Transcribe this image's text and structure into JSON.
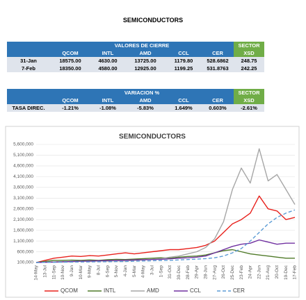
{
  "title": "SEMICONDUCTORS",
  "closing_table": {
    "group_header": "VALORES DE CIERRE",
    "sector_header": "SECTOR",
    "columns": [
      "QCOM",
      "INTL",
      "AMD",
      "CCL",
      "CER",
      "XSD"
    ],
    "rows": [
      {
        "label": "31-Jan",
        "values": [
          "18575.00",
          "4630.00",
          "13725.00",
          "1179.80",
          "528.6862",
          "248.75"
        ]
      },
      {
        "label": "7-Feb",
        "values": [
          "18350.00",
          "4580.00",
          "12925.00",
          "1199.25",
          "531.8763",
          "242.25"
        ]
      }
    ]
  },
  "variation_table": {
    "group_header": "VARIACION %",
    "sector_header": "SECTOR",
    "columns": [
      "QCOM",
      "INTL",
      "AMD",
      "CCL",
      "CER",
      "XSD"
    ],
    "rows": [
      {
        "label": "TASA DIREC.",
        "values": [
          "-1.21%",
          "-1.08%",
          "-5.83%",
          "1.649%",
          "0.603%",
          "-2.61%"
        ]
      }
    ]
  },
  "chart_data": {
    "type": "line",
    "title": "SEMICONDUCTORS",
    "categories": [
      "14-May",
      "13-Jul",
      "11-Sep",
      "10-Nov",
      "9-Jan",
      "10-Mar",
      "9-May",
      "8-Jul",
      "6-Sep",
      "5-Nov",
      "4-Jan",
      "5-Mar",
      "4-May",
      "3-Jul",
      "1-Sep",
      "31-Oct",
      "30-Dec",
      "28-Feb",
      "29-Apr",
      "28-Jun",
      "27-Aug",
      "26-Oct",
      "25-Dec",
      "23-Feb",
      "24-Apr",
      "22-Jun",
      "21-Aug",
      "20-Oct",
      "19-Dec",
      "17-Feb"
    ],
    "series": [
      {
        "name": "QCOM",
        "color": "#e8201b",
        "values": [
          100000,
          200000,
          300000,
          350000,
          400000,
          380000,
          420000,
          400000,
          450000,
          500000,
          550000,
          500000,
          550000,
          600000,
          650000,
          700000,
          700000,
          750000,
          800000,
          900000,
          1100000,
          1500000,
          1900000,
          2100000,
          2400000,
          3200000,
          2600000,
          2500000,
          2100000,
          2200000
        ]
      },
      {
        "name": "INTL",
        "color": "#4f7a28",
        "values": [
          100000,
          150000,
          200000,
          200000,
          210000,
          200000,
          220000,
          200000,
          230000,
          250000,
          240000,
          260000,
          280000,
          300000,
          320000,
          300000,
          350000,
          380000,
          400000,
          450000,
          550000,
          650000,
          700000,
          600000,
          500000,
          450000,
          400000,
          350000,
          300000,
          300000
        ]
      },
      {
        "name": "AMD",
        "color": "#a6a6a6",
        "values": [
          100000,
          120000,
          130000,
          150000,
          140000,
          160000,
          150000,
          170000,
          160000,
          180000,
          170000,
          200000,
          220000,
          250000,
          280000,
          350000,
          400000,
          500000,
          600000,
          800000,
          1200000,
          2000000,
          3500000,
          4500000,
          3800000,
          5400000,
          3900000,
          4200000,
          3500000,
          2800000
        ]
      },
      {
        "name": "CCL",
        "color": "#7030a0",
        "values": [
          100000,
          110000,
          120000,
          130000,
          150000,
          160000,
          170000,
          180000,
          190000,
          200000,
          210000,
          220000,
          230000,
          240000,
          250000,
          270000,
          300000,
          320000,
          350000,
          400000,
          550000,
          700000,
          850000,
          950000,
          1000000,
          1150000,
          1050000,
          950000,
          1000000,
          1000000
        ]
      },
      {
        "name": "CER",
        "color": "#5b9bd5",
        "dashed": true,
        "values": [
          100000,
          105000,
          110000,
          115000,
          120000,
          125000,
          130000,
          135000,
          140000,
          145000,
          150000,
          160000,
          170000,
          180000,
          190000,
          200000,
          220000,
          240000,
          260000,
          280000,
          320000,
          400000,
          550000,
          750000,
          1100000,
          1500000,
          1900000,
          2200000,
          2400000,
          2550000
        ]
      }
    ],
    "ylim": [
      100000,
      5600000
    ],
    "yticks": [
      {
        "value": 100000,
        "label": "100,000"
      },
      {
        "value": 600000,
        "label": "600,000"
      },
      {
        "value": 1100000,
        "label": "1,100,000"
      },
      {
        "value": 1600000,
        "label": "1,600,000"
      },
      {
        "value": 2100000,
        "label": "2,100,000"
      },
      {
        "value": 2600000,
        "label": "2,600,000"
      },
      {
        "value": 3100000,
        "label": "3,100,000"
      },
      {
        "value": 3600000,
        "label": "3,600,000"
      },
      {
        "value": 4100000,
        "label": "4,100,000"
      },
      {
        "value": 4600000,
        "label": "4,600,000"
      },
      {
        "value": 5100000,
        "label": "5,100,000"
      },
      {
        "value": 5600000,
        "label": "5,600,000"
      }
    ],
    "grid": true,
    "legend": "bottom"
  }
}
